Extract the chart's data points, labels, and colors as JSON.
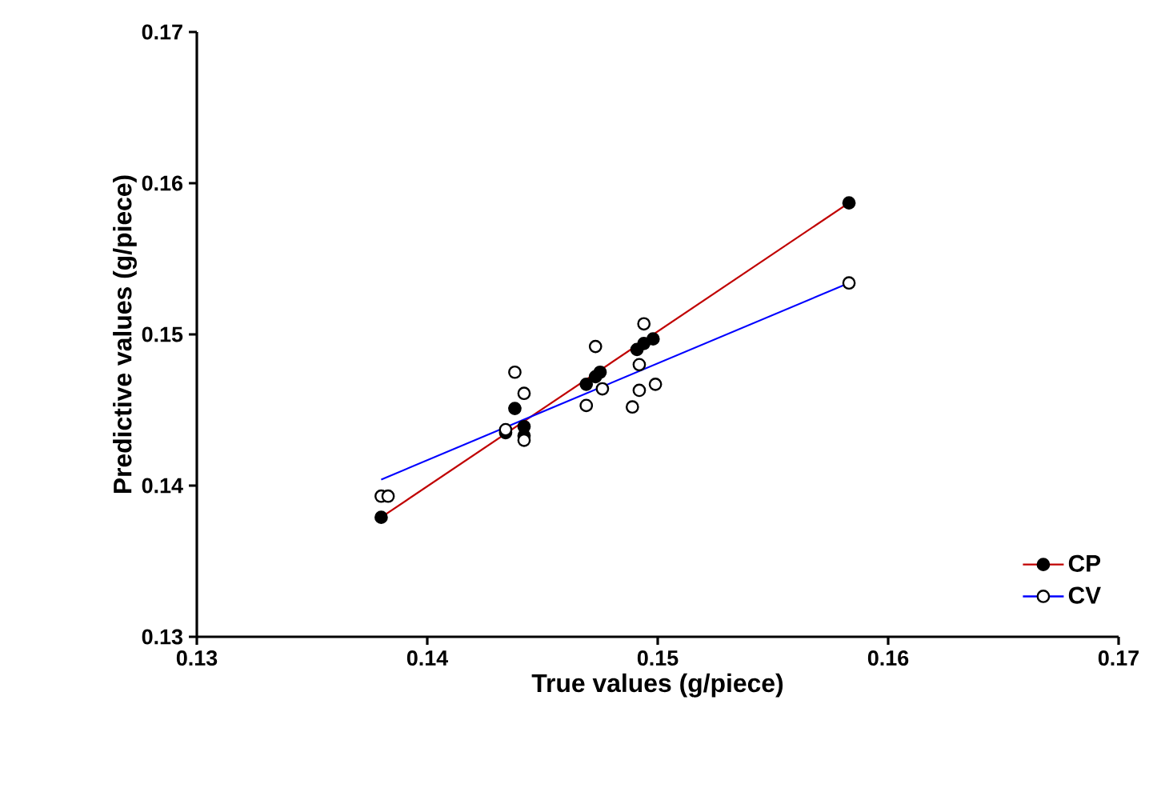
{
  "chart_data": {
    "type": "scatter",
    "xlabel": "True values (g/piece)",
    "ylabel": "Predictive values (g/piece)",
    "xlim": [
      0.13,
      0.17
    ],
    "ylim": [
      0.13,
      0.17
    ],
    "xticks": [
      0.13,
      0.14,
      0.15,
      0.16,
      0.17
    ],
    "yticks": [
      0.13,
      0.14,
      0.15,
      0.16,
      0.17
    ],
    "grid": false,
    "legend": "bottom right",
    "marker": "circle",
    "series": [
      {
        "name": "CP",
        "color": "#000000",
        "x": [
          0.138,
          0.1438,
          0.1434,
          0.1442,
          0.1442,
          0.1473,
          0.1469,
          0.1475,
          0.1491,
          0.1494,
          0.1498,
          0.1583
        ],
        "values": [
          0.1379,
          0.1451,
          0.1435,
          0.1439,
          0.1433,
          0.1472,
          0.1467,
          0.1475,
          0.149,
          0.1494,
          0.1497,
          0.1587
        ]
      },
      {
        "type": "line",
        "color": "#c00000",
        "marker": "none",
        "x": [
          0.138,
          0.1583
        ],
        "values": [
          0.1379,
          0.1587
        ]
      },
      {
        "name": "CV",
        "color": "#ffffff",
        "x": [
          0.138,
          0.1383,
          0.1438,
          0.1442,
          0.1434,
          0.1442,
          0.1473,
          0.1476,
          0.1469,
          0.1494,
          0.1492,
          0.1499,
          0.1492,
          0.1489,
          0.1583
        ],
        "values": [
          0.1393,
          0.1393,
          0.1475,
          0.1461,
          0.1437,
          0.143,
          0.1492,
          0.1464,
          0.1453,
          0.1507,
          0.148,
          0.1467,
          0.1463,
          0.1452,
          0.1534
        ]
      },
      {
        "type": "line",
        "color": "#0000ff",
        "marker": "none",
        "x": [
          0.138,
          0.1583
        ],
        "values": [
          0.1404,
          0.1534
        ]
      }
    ]
  }
}
